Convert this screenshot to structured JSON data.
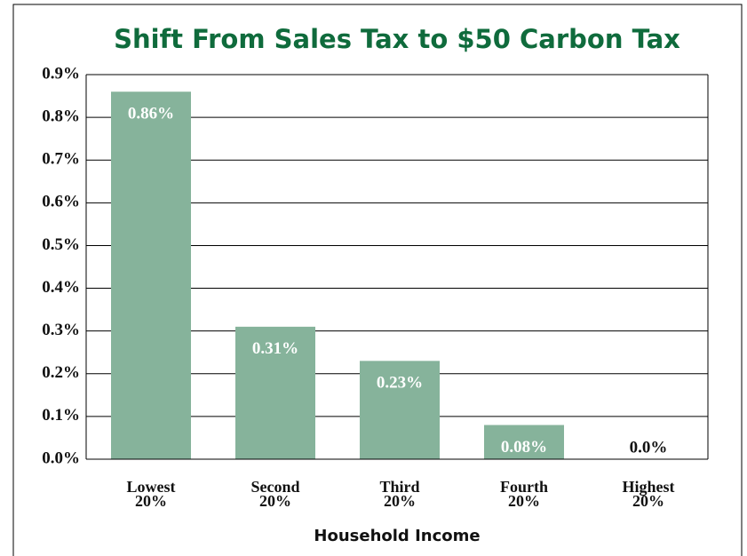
{
  "chart_data": {
    "type": "bar",
    "title": "Shift From Sales Tax to $50 Carbon Tax",
    "x_label": "Household Income",
    "categories": [
      "Lowest 20%",
      "Second 20%",
      "Third 20%",
      "Fourth 20%",
      "Highest 20%"
    ],
    "values": [
      0.86,
      0.31,
      0.23,
      0.08,
      0
    ],
    "value_labels": [
      "0.86%",
      "0.31%",
      "0.23%",
      "0.08%",
      "0.0%"
    ],
    "color": "#86b39b",
    "ylim": [
      0,
      0.9
    ],
    "yticks": [
      {
        "value": 0,
        "label": "0.0%"
      },
      {
        "value": 0.1,
        "label": "0.1%"
      },
      {
        "value": 0.2,
        "label": "0.2%"
      },
      {
        "value": 0.3,
        "label": "0.3%"
      },
      {
        "value": 0.4,
        "label": "0.4%"
      },
      {
        "value": 0.5,
        "label": "0.5%"
      },
      {
        "value": 0.6,
        "label": "0.6%"
      },
      {
        "value": 0.7,
        "label": "0.7%"
      },
      {
        "value": 0.8,
        "label": "0.8%"
      },
      {
        "value": 0.9,
        "label": "0.9%"
      }
    ],
    "grid": true
  }
}
